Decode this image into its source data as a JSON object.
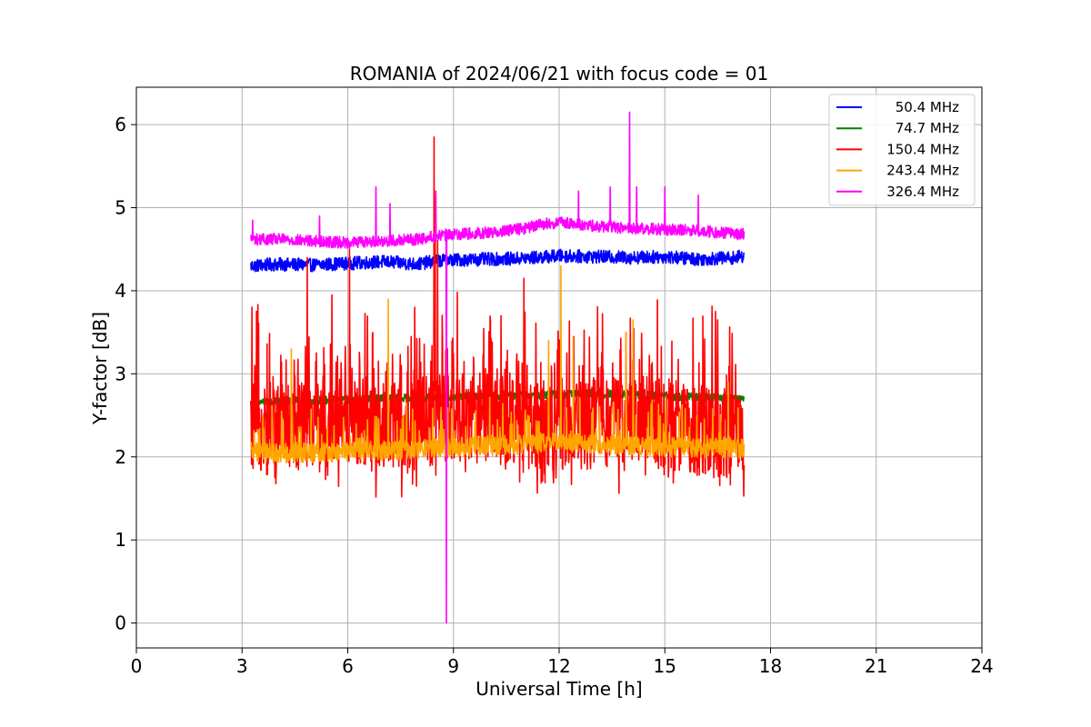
{
  "chart_data": {
    "type": "line",
    "title": "ROMANIA of 2024/06/21 with focus code = 01",
    "xlabel": "Universal Time [h]",
    "ylabel": "Y-factor [dB]",
    "xlim": [
      0,
      24
    ],
    "ylim": [
      -0.3,
      6.45
    ],
    "xticks": [
      0,
      3,
      6,
      9,
      12,
      15,
      18,
      21,
      24
    ],
    "xtick_labels": [
      "0",
      "3",
      "6",
      "9",
      "12",
      "15",
      "18",
      "21",
      "24"
    ],
    "yticks": [
      0,
      1,
      2,
      3,
      4,
      5,
      6
    ],
    "ytick_labels": [
      "0",
      "1",
      "2",
      "3",
      "4",
      "5",
      "6"
    ],
    "grid": true,
    "legend_position": "top-right",
    "x_range_of_data": [
      3.25,
      17.25
    ],
    "series": [
      {
        "name": "50.4 MHz",
        "color": "#0000ff",
        "x": [
          3.25,
          4.0,
          5.0,
          6.0,
          7.0,
          8.0,
          8.5,
          9.0,
          10.0,
          11.0,
          12.0,
          13.0,
          14.0,
          15.0,
          16.0,
          17.0,
          17.25
        ],
        "values": [
          4.3,
          4.32,
          4.31,
          4.33,
          4.35,
          4.32,
          4.36,
          4.37,
          4.38,
          4.39,
          4.42,
          4.41,
          4.4,
          4.41,
          4.38,
          4.4,
          4.42
        ],
        "noise": 0.08,
        "spikes": []
      },
      {
        "name": "74.7 MHz",
        "color": "#008000",
        "x": [
          3.25,
          5.0,
          7.0,
          9.0,
          11.0,
          13.0,
          15.0,
          17.25
        ],
        "values": [
          2.65,
          2.68,
          2.7,
          2.72,
          2.74,
          2.76,
          2.73,
          2.7
        ],
        "noise": 0.05,
        "spikes": []
      },
      {
        "name": "150.4 MHz",
        "color": "#ff0000",
        "x": [
          3.25,
          4.0,
          5.0,
          6.0,
          7.0,
          8.0,
          9.0,
          10.0,
          11.0,
          12.0,
          13.0,
          14.0,
          15.0,
          16.0,
          17.25
        ],
        "values": [
          2.35,
          2.45,
          2.4,
          2.45,
          2.35,
          2.4,
          2.5,
          2.45,
          2.4,
          2.35,
          2.4,
          2.45,
          2.4,
          2.3,
          2.25
        ],
        "noise": 0.55,
        "spikes": [
          [
            4.85,
            4.4
          ],
          [
            5.55,
            3.95
          ],
          [
            6.05,
            4.5
          ],
          [
            7.9,
            3.8
          ],
          [
            8.45,
            5.85
          ],
          [
            8.48,
            5.1
          ],
          [
            8.55,
            4.6
          ],
          [
            11.0,
            4.15
          ],
          [
            13.9,
            3.5
          ],
          [
            16.5,
            3.65
          ]
        ]
      },
      {
        "name": "243.4 MHz",
        "color": "#ffa500",
        "x": [
          3.25,
          5.0,
          7.0,
          9.0,
          11.0,
          12.0,
          13.0,
          15.0,
          17.25
        ],
        "values": [
          2.05,
          2.05,
          2.08,
          2.12,
          2.15,
          2.18,
          2.15,
          2.12,
          2.1
        ],
        "noise": 0.12,
        "spikes": [
          [
            4.4,
            3.3
          ],
          [
            7.15,
            3.9
          ],
          [
            11.7,
            3.4
          ],
          [
            12.05,
            4.3
          ],
          [
            12.4,
            3.45
          ],
          [
            13.9,
            3.5
          ],
          [
            14.1,
            3.65
          ],
          [
            16.8,
            2.9
          ]
        ]
      },
      {
        "name": "326.4 MHz",
        "color": "#ff00ff",
        "x": [
          3.25,
          4.0,
          5.0,
          6.0,
          7.0,
          8.0,
          8.5,
          9.0,
          10.0,
          11.0,
          11.5,
          12.0,
          13.0,
          14.0,
          15.0,
          16.0,
          17.25
        ],
        "values": [
          4.62,
          4.62,
          4.6,
          4.58,
          4.6,
          4.62,
          4.66,
          4.68,
          4.7,
          4.75,
          4.8,
          4.82,
          4.78,
          4.75,
          4.74,
          4.72,
          4.68
        ],
        "noise": 0.07,
        "spikes": [
          [
            3.3,
            4.85
          ],
          [
            5.2,
            4.9
          ],
          [
            6.8,
            5.25
          ],
          [
            7.2,
            5.05
          ],
          [
            8.5,
            5.2
          ],
          [
            12.55,
            5.2
          ],
          [
            13.45,
            5.25
          ],
          [
            14.0,
            6.15
          ],
          [
            14.2,
            5.25
          ],
          [
            15.0,
            5.25
          ],
          [
            15.95,
            5.15
          ],
          [
            8.8,
            0.0
          ]
        ]
      }
    ]
  }
}
